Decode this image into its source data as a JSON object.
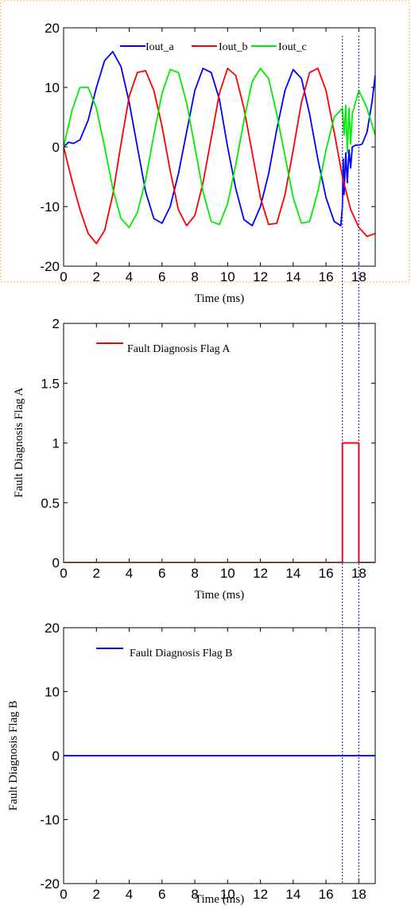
{
  "figure": {
    "marker_x": [
      17.0,
      18.0
    ],
    "colors": {
      "iout_a": "#0000ff",
      "iout_b": "#ff0000",
      "iout_c": "#00ee00",
      "marker": "#5a2ea6",
      "frame": "#f5c24a"
    }
  },
  "chart_data": [
    {
      "type": "line",
      "xlabel": "Time (ms)",
      "ylabel": "",
      "xlim": [
        0,
        19
      ],
      "ylim": [
        -20,
        20
      ],
      "xticks": [
        "0",
        "2",
        "4",
        "6",
        "8",
        "10",
        "12",
        "14",
        "16",
        "18"
      ],
      "yticks": [
        "-20",
        "-10",
        "0",
        "10",
        "20"
      ],
      "legend_position": "top",
      "series": [
        {
          "name": "Iout_a",
          "x": [
            0,
            0.3,
            0.6,
            1.0,
            1.5,
            2.0,
            2.5,
            3.0,
            3.5,
            4.0,
            4.5,
            5.0,
            5.5,
            6.0,
            6.5,
            7.0,
            7.5,
            8.0,
            8.5,
            9.0,
            9.5,
            10.0,
            10.5,
            11.0,
            11.5,
            12.0,
            12.5,
            13.0,
            13.5,
            14.0,
            14.5,
            15.0,
            15.5,
            16.0,
            16.5,
            16.9,
            17.0,
            17.05,
            17.1,
            17.2,
            17.3,
            17.4,
            17.5,
            17.6,
            17.8,
            18.0,
            18.2,
            18.5,
            18.8,
            19.0
          ],
          "y": [
            0,
            0.8,
            0.6,
            1.2,
            4.5,
            10.0,
            14.5,
            16.0,
            13.5,
            7.5,
            0,
            -7.5,
            -12.0,
            -12.8,
            -10.0,
            -4.5,
            2.5,
            9.5,
            13.2,
            12.5,
            8.0,
            0,
            -7.0,
            -12.2,
            -13.2,
            -10.0,
            -4.5,
            3.0,
            9.5,
            13.0,
            11.5,
            5.5,
            -2.0,
            -8.5,
            -12.5,
            -13.2,
            -10.0,
            -2.0,
            -8.0,
            -1.0,
            -6.0,
            -0.5,
            -3.5,
            0,
            0.3,
            0.3,
            0.5,
            2.5,
            7.5,
            12.0
          ]
        },
        {
          "name": "Iout_b",
          "x": [
            0,
            0.5,
            1.0,
            1.5,
            2.0,
            2.5,
            3.0,
            3.5,
            4.0,
            4.5,
            5.0,
            5.5,
            6.0,
            6.5,
            7.0,
            7.5,
            8.0,
            8.5,
            9.0,
            9.5,
            10.0,
            10.5,
            11.0,
            11.5,
            12.0,
            12.5,
            13.0,
            13.5,
            14.0,
            14.5,
            15.0,
            15.5,
            16.0,
            16.5,
            17.0,
            17.5,
            18.0,
            18.5,
            19.0
          ],
          "y": [
            0,
            -5.5,
            -10.5,
            -14.5,
            -16.2,
            -14.0,
            -8.0,
            0.5,
            8.5,
            12.5,
            12.8,
            9.5,
            3.5,
            -4.0,
            -10.5,
            -13.2,
            -11.5,
            -6.0,
            1.5,
            9.0,
            13.2,
            12.0,
            6.5,
            -1.0,
            -8.5,
            -13.0,
            -12.8,
            -8.0,
            -0.5,
            7.5,
            12.5,
            13.2,
            9.5,
            2.5,
            -5.0,
            -10.5,
            -13.5,
            -15.0,
            -14.5
          ]
        },
        {
          "name": "Iout_c",
          "x": [
            0,
            0.5,
            1.0,
            1.5,
            2.0,
            2.5,
            3.0,
            3.5,
            4.0,
            4.5,
            5.0,
            5.5,
            6.0,
            6.5,
            7.0,
            7.5,
            8.0,
            8.5,
            9.0,
            9.5,
            10.0,
            10.5,
            11.0,
            11.5,
            12.0,
            12.5,
            13.0,
            13.5,
            14.0,
            14.5,
            15.0,
            15.5,
            16.0,
            16.5,
            17.0,
            17.1,
            17.2,
            17.3,
            17.4,
            17.5,
            17.6,
            18.0,
            18.5,
            19.0
          ],
          "y": [
            0,
            6.0,
            10.0,
            10.0,
            6.5,
            0,
            -7.0,
            -12.0,
            -13.5,
            -11.0,
            -5.5,
            2.0,
            9.0,
            13.0,
            12.5,
            7.5,
            0,
            -7.5,
            -12.5,
            -13.0,
            -9.5,
            -3.0,
            4.5,
            11.0,
            13.2,
            11.5,
            5.5,
            -1.5,
            -8.5,
            -12.8,
            -12.5,
            -7.5,
            -0.5,
            5.0,
            6.5,
            2.0,
            7.0,
            -1.0,
            6.5,
            0.5,
            5.5,
            9.5,
            6.5,
            2.0
          ]
        }
      ]
    },
    {
      "type": "line",
      "xlabel": "Time (ms)",
      "ylabel": "Fault Diagnosis Flag A",
      "xlim": [
        0,
        19
      ],
      "ylim": [
        0,
        2
      ],
      "xticks": [
        "0",
        "2",
        "4",
        "6",
        "8",
        "10",
        "12",
        "14",
        "16",
        "18"
      ],
      "yticks": [
        "0",
        "0.5",
        "1",
        "1.5",
        "2"
      ],
      "legend_position": "top-left",
      "series": [
        {
          "name": "Fault Diagnosis Flag A",
          "x": [
            0,
            17.0,
            17.0,
            18.0,
            18.0,
            19.0
          ],
          "y": [
            0,
            0,
            1,
            1,
            0,
            0
          ]
        }
      ]
    },
    {
      "type": "line",
      "xlabel": "Time (ms)",
      "ylabel": "Fault Diagnosis Flag B",
      "xlim": [
        0,
        19
      ],
      "ylim": [
        -20,
        20
      ],
      "xticks": [
        "0",
        "2",
        "4",
        "6",
        "8",
        "10",
        "12",
        "14",
        "16",
        "18"
      ],
      "yticks": [
        "-20",
        "-10",
        "0",
        "10",
        "20"
      ],
      "legend_position": "top-left",
      "series": [
        {
          "name": "Fault Diagnosis Flag B",
          "x": [
            0,
            19
          ],
          "y": [
            0,
            0
          ]
        }
      ]
    }
  ]
}
